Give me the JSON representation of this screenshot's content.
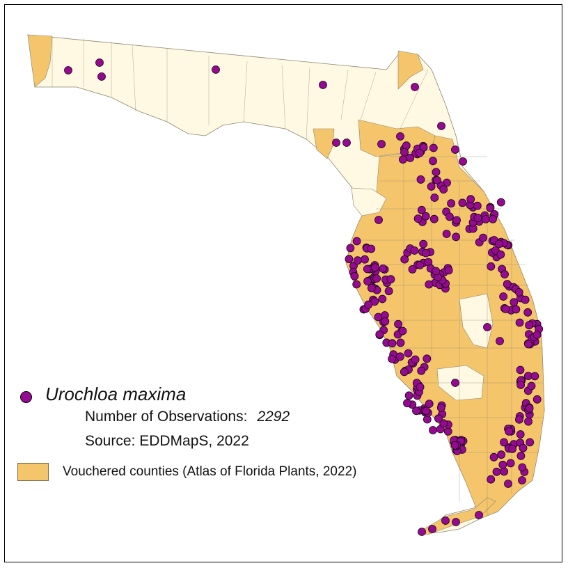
{
  "map": {
    "colors": {
      "vouchered_fill": "#f5c56c",
      "unvouchered_fill": "#fff8e2",
      "county_border": "#8b8470",
      "point_fill": "#950b8f",
      "point_stroke": "#1a001a"
    }
  },
  "legend": {
    "species_name": "Urochloa maxima",
    "observations_label": "Number of Observations:",
    "observations_value": "2292",
    "source": "Source: EDDMapS, 2022",
    "vouchered_label": "Vouchered counties (Atlas of Florida Plants, 2022)"
  }
}
